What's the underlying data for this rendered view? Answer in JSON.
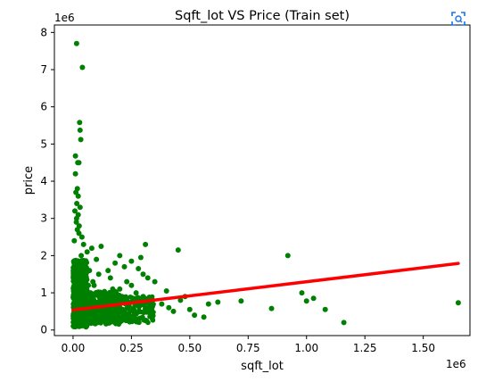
{
  "ui": {
    "expand_icon": "expand-icon"
  },
  "chart_data": {
    "type": "scatter",
    "title": "Sqft_lot VS Price (Train set)",
    "xlabel": "sqft_lot",
    "ylabel": "price",
    "x_offset_text": "1e6",
    "y_offset_text": "1e6",
    "xlim": [
      -80000,
      1700000
    ],
    "ylim": [
      -150000,
      8200000
    ],
    "xticks": [
      0,
      250000,
      500000,
      750000,
      1000000,
      1250000,
      1500000
    ],
    "xtick_labels": [
      "0.00",
      "0.25",
      "0.50",
      "0.75",
      "1.00",
      "1.25",
      "1.50"
    ],
    "yticks": [
      0,
      1000000,
      2000000,
      3000000,
      4000000,
      5000000,
      6000000,
      7000000,
      8000000
    ],
    "ytick_labels": [
      "0",
      "1",
      "2",
      "3",
      "4",
      "5",
      "6",
      "7",
      "8"
    ],
    "grid": false,
    "colors": {
      "points": "#008000",
      "fit_line": "#ff0000"
    },
    "series": [
      {
        "type": "scatter",
        "x": [
          15000,
          40000,
          28000,
          30000,
          33000,
          10000,
          20000,
          25000,
          10000,
          18000,
          12000,
          22000,
          16000,
          30000,
          22000,
          14000,
          26000,
          18000,
          38000,
          45000,
          60000,
          80000,
          100000,
          120000,
          150000,
          180000,
          200000,
          220000,
          250000,
          280000,
          300000,
          320000,
          350000,
          400000,
          450000,
          460000,
          310000,
          290000,
          250000,
          230000,
          200000,
          160000,
          130000,
          110000,
          90000,
          70000,
          50000,
          35000,
          480000,
          500000,
          520000,
          580000,
          620000,
          720000,
          850000,
          920000,
          980000,
          1000000,
          1030000,
          1080000,
          1160000,
          1650000,
          560000,
          430000,
          410000,
          380000,
          340000,
          300000,
          270000,
          240000,
          210000,
          190000,
          170000,
          140000,
          125000,
          95000,
          85000,
          75000,
          65000,
          55000,
          45000,
          35000,
          25000,
          15000,
          8000,
          5000,
          12000,
          20000,
          30000,
          18000,
          9000,
          24000,
          14000,
          28000,
          6000,
          11000,
          16000,
          21000,
          26000,
          31000,
          36000,
          42000,
          48000,
          7000
        ],
        "y": [
          7700000,
          7060000,
          5580000,
          5370000,
          5120000,
          4680000,
          4500000,
          4500000,
          4200000,
          3800000,
          3700000,
          3600000,
          3400000,
          3300000,
          3100000,
          2900000,
          2800000,
          2700000,
          2500000,
          2300000,
          2100000,
          2200000,
          1900000,
          2250000,
          1600000,
          1800000,
          2000000,
          1700000,
          1850000,
          1650000,
          1500000,
          1400000,
          1300000,
          1050000,
          2150000,
          800000,
          2300000,
          1950000,
          1200000,
          1300000,
          1100000,
          1400000,
          900000,
          1500000,
          1200000,
          1600000,
          1800000,
          2000000,
          900000,
          550000,
          400000,
          700000,
          750000,
          780000,
          580000,
          2000000,
          1000000,
          780000,
          850000,
          550000,
          200000,
          730000,
          350000,
          500000,
          600000,
          700000,
          800000,
          900000,
          1000000,
          650000,
          900000,
          700000,
          1100000,
          800000,
          950000,
          700000,
          1300000,
          1000000,
          1200000,
          900000,
          1400000,
          1700000,
          2600000,
          3000000,
          3200000,
          2400000,
          1800000,
          1500000,
          1200000,
          1000000,
          800000,
          600000,
          500000,
          400000,
          300000,
          450000,
          550000,
          650000,
          750000,
          850000,
          950000,
          1050000,
          1150000,
          1250000
        ]
      },
      {
        "type": "line",
        "name": "",
        "x": [
          0,
          1650000
        ],
        "y": [
          540000,
          1790000
        ]
      }
    ]
  }
}
